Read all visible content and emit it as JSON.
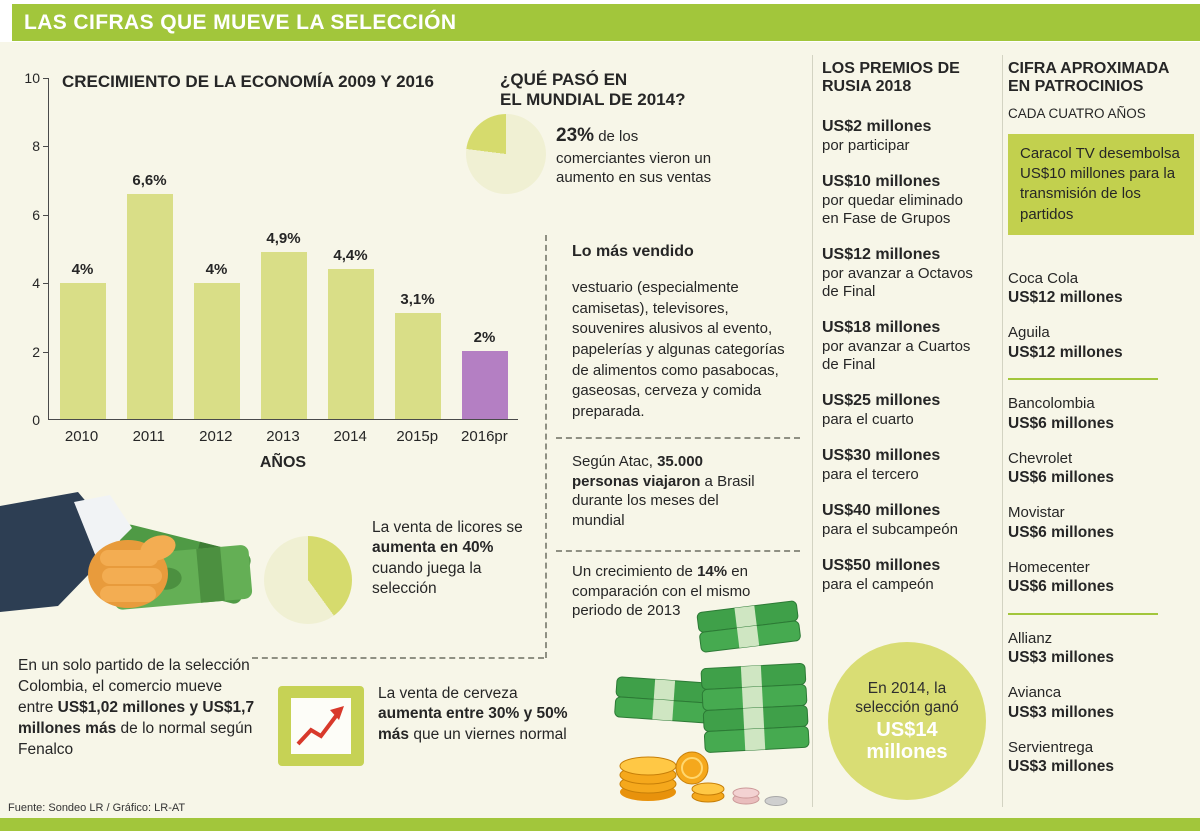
{
  "header": {
    "title": "LAS CIFRAS QUE MUEVE LA SELECCIÓN"
  },
  "chart_data": [
    {
      "type": "bar",
      "title": "CRECIMIENTO DE LA ECONOMÍA 2009 Y 2016",
      "categories": [
        "2010",
        "2011",
        "2012",
        "2013",
        "2014",
        "2015p",
        "2016pr"
      ],
      "values": [
        4,
        6.6,
        4,
        4.9,
        4.4,
        3.1,
        2
      ],
      "bar_labels": [
        "4%",
        "6,6%",
        "4%",
        "4,9%",
        "4,4%",
        "3,1%",
        "2%"
      ],
      "xlabel": "AÑOS",
      "ylabel": "",
      "ylim": [
        0,
        10
      ],
      "yticks": [
        0,
        2,
        4,
        6,
        8,
        10
      ],
      "grid": false,
      "legend": "none",
      "bar_color": "#d9de87",
      "highlight_index": 6,
      "highlight_color": "#b47fc3"
    },
    {
      "type": "pie",
      "title": "¿QUÉ PASÓ EN EL MUNDIAL DE 2014?",
      "values": [
        23,
        77
      ],
      "labels": [
        "comerciantes que vieron un aumento en sus ventas",
        "resto"
      ]
    },
    {
      "type": "pie",
      "title": "Venta de licores cuando juega la selección",
      "values": [
        40,
        60
      ],
      "labels": [
        "aumento en la venta de licores",
        "resto"
      ]
    }
  ],
  "mundial": {
    "title_line1": "¿QUÉ PASÓ EN",
    "title_line2": "EL MUNDIAL DE 2014?",
    "stat_bold": "23%",
    "stat_rest": " de los comerciantes vieron un aumento en sus ventas",
    "vendido_title": "Lo más vendido",
    "vendido_text": "vestuario (especialmente camisetas), televisores, souvenires alusivos al evento, papelerías y algunas categorías de alimentos como pasabocas, gaseosas, cerveza y comida preparada.",
    "atac_pre": "Según Atac, ",
    "atac_bold": "35.000 personas viajaron",
    "atac_post": " a Brasil durante los meses del mundial",
    "crecimiento_pre": "Un crecimiento de ",
    "crecimiento_bold": "14%",
    "crecimiento_post": " en comparación con el mismo periodo de 2013"
  },
  "ventas": {
    "licores_pre": "La venta de licores se ",
    "licores_bold": "aumenta en 40%",
    "licores_post": " cuando juega la selección",
    "fenalco_pre": "En un solo partido de la selección Colombia, el comercio mueve entre ",
    "fenalco_bold": "US$1,02 millones y US$1,7 millones más",
    "fenalco_post": " de lo normal según Fenalco",
    "cerveza_pre": "La venta de cerveza ",
    "cerveza_bold": "aumenta entre 30% y 50% más",
    "cerveza_post": " que un viernes normal"
  },
  "premios": {
    "title_line1": "LOS PREMIOS DE",
    "title_line2": "RUSIA 2018",
    "items": [
      {
        "amount": "US$2 millones",
        "desc": "por participar"
      },
      {
        "amount": "US$10 millones",
        "desc": "por quedar eliminado en Fase de Grupos"
      },
      {
        "amount": "US$12 millones",
        "desc": "por avanzar a Octavos de Final"
      },
      {
        "amount": "US$18 millones",
        "desc": "por avanzar a Cuartos de Final"
      },
      {
        "amount": "US$25 millones",
        "desc": "para el cuarto"
      },
      {
        "amount": "US$30 millones",
        "desc": "para el tercero"
      },
      {
        "amount": "US$40 millones",
        "desc": "para el subcampeón"
      },
      {
        "amount": "US$50 millones",
        "desc": "para el campeón"
      }
    ],
    "badge_pre": "En 2014, la selección ganó",
    "badge_bold": "US$14 millones"
  },
  "patrocinios": {
    "title_line1": "CIFRA APROXIMADA",
    "title_line2": "EN PATROCINIOS",
    "subtitle": "CADA CUATRO AÑOS",
    "highlight": "Caracol TV desembolsa US$10 millones para la transmisión de los partidos",
    "groups": [
      {
        "brands": [
          {
            "name": "Coca Cola",
            "amount": "US$12 millones"
          },
          {
            "name": "Aguila",
            "amount": "US$12 millones"
          }
        ]
      },
      {
        "brands": [
          {
            "name": "Bancolombia",
            "amount": "US$6 millones"
          },
          {
            "name": "Chevrolet",
            "amount": "US$6 millones"
          },
          {
            "name": "Movistar",
            "amount": "US$6 millones"
          },
          {
            "name": "Homecenter",
            "amount": "US$6 millones"
          }
        ]
      },
      {
        "brands": [
          {
            "name": "Allianz",
            "amount": "US$3 millones"
          },
          {
            "name": "Avianca",
            "amount": "US$3 millones"
          },
          {
            "name": "Servientrega",
            "amount": "US$3 millones"
          }
        ]
      }
    ]
  },
  "footer": {
    "source": "Fuente: Sondeo LR / Gráfico: LR-AT"
  },
  "colors": {
    "accent_green": "#a2c63b",
    "bar_fill": "#d9de87",
    "bar_highlight": "#b47fc3",
    "pie_dark": "#d6db6d",
    "pie_light": "#f0f0d3",
    "highlight_box": "#c2d04e",
    "badge_circle": "#d9dd74",
    "background": "#f7f6e8"
  }
}
